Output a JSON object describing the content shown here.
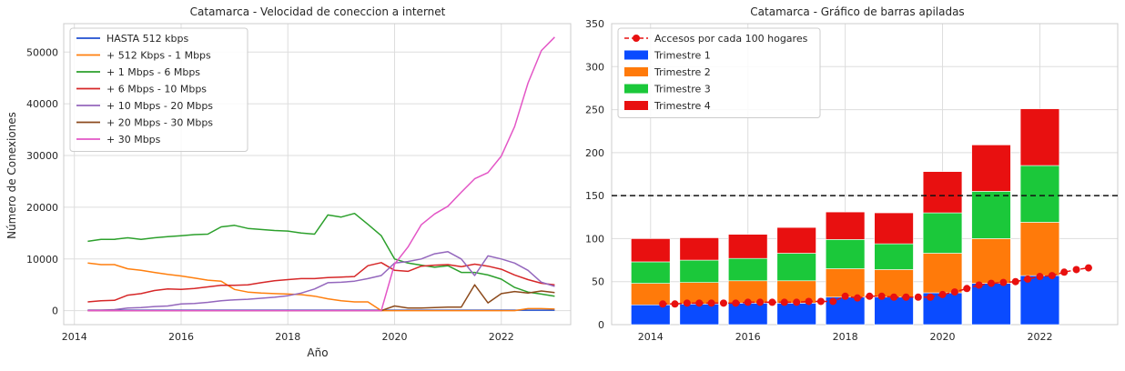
{
  "chart_data": [
    {
      "type": "line",
      "title": "Catamarca - Velocidad de coneccion a internet",
      "xlabel": "Año",
      "ylabel": "Número de Conexiones",
      "xlim": [
        2013.8,
        2023.3
      ],
      "ylim": [
        -2700,
        55500
      ],
      "xticks": [
        2014,
        2016,
        2018,
        2020,
        2022
      ],
      "yticks": [
        0,
        10000,
        20000,
        30000,
        40000,
        50000
      ],
      "grid": true,
      "legend_position": "upper-left",
      "x": [
        2014.25,
        2014.5,
        2014.75,
        2015.0,
        2015.25,
        2015.5,
        2015.75,
        2016.0,
        2016.25,
        2016.5,
        2016.75,
        2017.0,
        2017.25,
        2017.5,
        2017.75,
        2018.0,
        2018.25,
        2018.5,
        2018.75,
        2019.0,
        2019.25,
        2019.5,
        2019.75,
        2020.0,
        2020.25,
        2020.5,
        2020.75,
        2021.0,
        2021.25,
        2021.5,
        2021.75,
        2022.0,
        2022.25,
        2022.5,
        2022.75,
        2023.0
      ],
      "series": [
        {
          "name": "HASTA 512 kbps",
          "color": "#1f4fd0",
          "values": [
            100,
            100,
            100,
            100,
            100,
            100,
            100,
            100,
            100,
            100,
            100,
            100,
            100,
            100,
            100,
            100,
            100,
            100,
            100,
            100,
            100,
            100,
            100,
            100,
            100,
            100,
            100,
            100,
            100,
            100,
            100,
            100,
            100,
            100,
            100,
            100
          ]
        },
        {
          "name": "+ 512 Kbps - 1 Mbps",
          "color": "#ff7f0e",
          "values": [
            9200,
            8900,
            8900,
            8100,
            7800,
            7400,
            7000,
            6700,
            6300,
            5900,
            5700,
            4100,
            3600,
            3400,
            3300,
            3200,
            3100,
            2800,
            2300,
            1900,
            1700,
            1700,
            0,
            0,
            0,
            0,
            0,
            0,
            0,
            0,
            0,
            0,
            0,
            400,
            400,
            300
          ]
        },
        {
          "name": "+ 1 Mbps - 6 Mbps",
          "color": "#2ca02c",
          "values": [
            13400,
            13800,
            13800,
            14100,
            13800,
            14100,
            14300,
            14500,
            14700,
            14800,
            16200,
            16500,
            15900,
            15700,
            15500,
            15400,
            15000,
            14800,
            18500,
            18100,
            18800,
            16700,
            14500,
            10000,
            9200,
            8800,
            8400,
            8700,
            7400,
            7400,
            6900,
            6100,
            4500,
            3600,
            3200,
            2800
          ]
        },
        {
          "name": "+ 6 Mbps - 10 Mbps",
          "color": "#d62728",
          "values": [
            1700,
            1900,
            2000,
            3000,
            3300,
            3900,
            4200,
            4100,
            4300,
            4600,
            4900,
            4900,
            5000,
            5400,
            5800,
            6000,
            6200,
            6200,
            6400,
            6500,
            6600,
            8700,
            9300,
            7800,
            7600,
            8600,
            8800,
            8900,
            8500,
            9000,
            8600,
            8000,
            6900,
            6000,
            5300,
            5000
          ]
        },
        {
          "name": "+ 10 Mbps - 20 Mbps",
          "color": "#9467bd",
          "values": [
            100,
            100,
            200,
            500,
            600,
            800,
            900,
            1300,
            1400,
            1600,
            1900,
            2100,
            2200,
            2400,
            2600,
            2900,
            3400,
            4200,
            5400,
            5500,
            5700,
            6200,
            6800,
            9200,
            9500,
            10000,
            11000,
            11400,
            10000,
            6800,
            10600,
            10000,
            9200,
            7800,
            5500,
            4700
          ]
        },
        {
          "name": "+ 20 Mbps - 30 Mbps",
          "color": "#8c4a1c",
          "values": [
            0,
            0,
            0,
            0,
            0,
            0,
            0,
            0,
            0,
            0,
            0,
            0,
            0,
            0,
            0,
            0,
            0,
            0,
            0,
            0,
            0,
            0,
            0,
            900,
            500,
            500,
            600,
            700,
            700,
            5000,
            1500,
            3300,
            3700,
            3400,
            3800,
            3500
          ]
        },
        {
          "name": "+ 30 Mbps",
          "color": "#e356c6",
          "values": [
            0,
            0,
            0,
            0,
            0,
            0,
            0,
            0,
            0,
            0,
            0,
            0,
            0,
            0,
            0,
            0,
            0,
            0,
            0,
            0,
            0,
            0,
            0,
            9000,
            12300,
            16600,
            18700,
            20200,
            22900,
            25500,
            26700,
            29900,
            35600,
            44000,
            50300,
            52900
          ]
        }
      ]
    },
    {
      "type": "bar",
      "stacked": true,
      "title": "Catamarca - Gráfico de barras apiladas",
      "ylim": [
        0,
        350
      ],
      "xlim": [
        2013.2,
        2023.6
      ],
      "xticks": [
        2014,
        2016,
        2018,
        2020,
        2022
      ],
      "yticks": [
        0,
        50,
        100,
        150,
        200,
        250,
        300,
        350
      ],
      "grid": true,
      "legend_position": "upper-left",
      "reference_line": 150,
      "categories": [
        2014,
        2015,
        2016,
        2017,
        2018,
        2019,
        2020,
        2021,
        2022
      ],
      "series": [
        {
          "name": "Trimestre 1",
          "color": "#0a4bff",
          "values": [
            23,
            24,
            25,
            25,
            32,
            32,
            37,
            48,
            57
          ]
        },
        {
          "name": "Trimestre 2",
          "color": "#ff7a0a",
          "values": [
            25,
            25,
            26,
            26,
            33,
            32,
            46,
            52,
            62
          ]
        },
        {
          "name": "Trimestre 3",
          "color": "#1bc83a",
          "values": [
            25,
            26,
            26,
            32,
            34,
            30,
            47,
            55,
            66
          ]
        },
        {
          "name": "Trimestre 4",
          "color": "#e81010",
          "values": [
            27,
            26,
            28,
            30,
            32,
            36,
            48,
            54,
            66
          ]
        }
      ],
      "line_series": {
        "name": "Accesos por cada 100 hogares",
        "color": "#e81010",
        "x": [
          2014.25,
          2014.5,
          2014.75,
          2015.0,
          2015.25,
          2015.5,
          2015.75,
          2016.0,
          2016.25,
          2016.5,
          2016.75,
          2017.0,
          2017.25,
          2017.5,
          2017.75,
          2018.0,
          2018.25,
          2018.5,
          2018.75,
          2019.0,
          2019.25,
          2019.5,
          2019.75,
          2020.0,
          2020.25,
          2020.5,
          2020.75,
          2021.0,
          2021.25,
          2021.5,
          2021.75,
          2022.0,
          2022.25,
          2022.5,
          2022.75,
          2023.0
        ],
        "values": [
          24,
          24,
          25,
          25,
          25,
          25,
          25,
          26,
          26,
          26,
          26,
          26,
          27,
          27,
          27,
          33,
          31,
          33,
          33,
          32,
          32,
          32,
          32,
          35,
          38,
          42,
          46,
          48,
          49,
          50,
          53,
          56,
          57,
          61,
          64,
          66
        ]
      }
    }
  ]
}
